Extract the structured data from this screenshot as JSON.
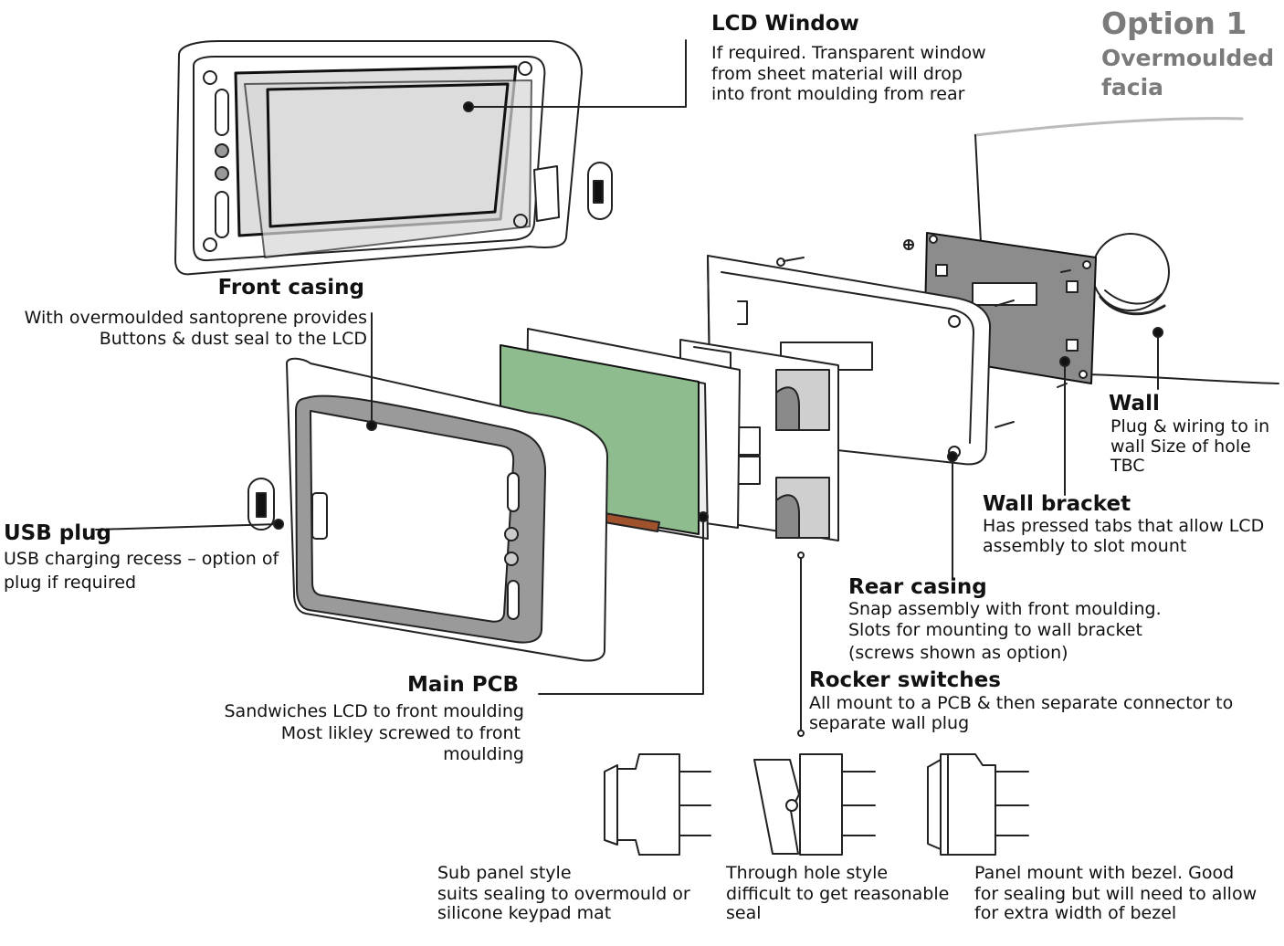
{
  "option": {
    "title": "Option 1",
    "subtitle_line1": "Overmoulded",
    "subtitle_line2": "facia"
  },
  "lcd_window": {
    "title": "LCD Window",
    "lines": [
      "If required.  Transparent window",
      "from sheet material will drop",
      "into front moulding from rear"
    ]
  },
  "front_casing": {
    "title": "Front casing",
    "lines": [
      "With overmoulded santoprene provides",
      "Buttons & dust seal to the LCD"
    ]
  },
  "usb_plug": {
    "title": "USB plug",
    "lines": [
      "USB charging recess – option of",
      "plug if required"
    ]
  },
  "main_pcb": {
    "title": "Main PCB",
    "lines": [
      "Sandwiches LCD  to front moulding",
      "Most likley screwed  to front",
      "moulding"
    ]
  },
  "wall": {
    "title": "Wall",
    "lines": [
      "Plug & wiring to in",
      "wall Size of hole",
      "TBC"
    ]
  },
  "wall_bracket": {
    "title": "Wall bracket",
    "lines": [
      "Has pressed tabs that  allow LCD",
      "assembly to slot mount"
    ]
  },
  "rear_casing": {
    "title": "Rear casing",
    "lines": [
      "Snap assembly with front moulding.",
      "Slots for mounting to wall bracket",
      "(screws shown as option)"
    ]
  },
  "rocker_switches": {
    "title": "Rocker switches",
    "lines": [
      "All mount to a PCB & then separate connector to",
      "separate wall plug"
    ]
  },
  "switch_styles": [
    {
      "lines": [
        "Sub panel style",
        "suits sealing to overmould  or",
        "silicone keypad mat"
      ]
    },
    {
      "lines": [
        "Through hole style",
        "difficult to get  reasonable",
        "seal"
      ]
    },
    {
      "lines": [
        "Panel mount with bezel.  Good",
        "for sealing but will need to allow",
        "for extra width of bezel"
      ]
    }
  ],
  "colors": {
    "lcd_glass": "#dedede",
    "lcd_panel": "#8fbc8f",
    "bracket": "#8c8c8c",
    "gasket": "#9a9a9a",
    "option_text": "#7b7b7b"
  }
}
